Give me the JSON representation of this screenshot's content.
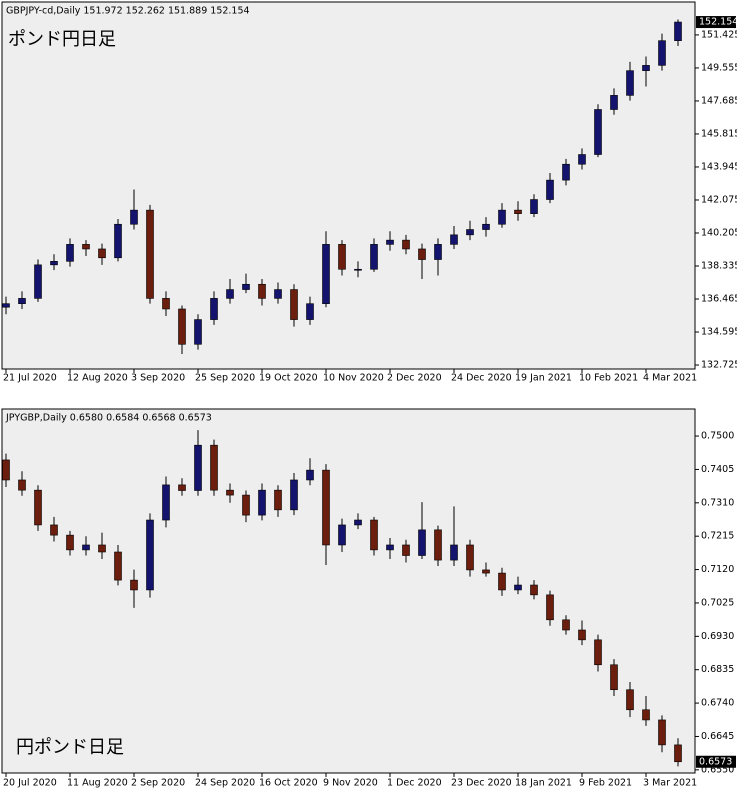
{
  "chart_data": [
    {
      "type": "candlestick",
      "title": "GBPJPY-cd,Daily  151.972 152.262 151.889 152.154",
      "annotation": "ポンド円日足",
      "up_color": "#14146e",
      "down_color": "#6b1e0e",
      "wick_color": "#000000",
      "categories": [
        "21 Jul 2020",
        null,
        null,
        null,
        "12 Aug 2020",
        null,
        null,
        null,
        "3 Sep 2020",
        null,
        null,
        null,
        "25 Sep 2020",
        null,
        null,
        null,
        "19 Oct 2020",
        null,
        null,
        null,
        "10 Nov 2020",
        null,
        null,
        null,
        "2 Dec 2020",
        null,
        null,
        null,
        "24 Dec 2020",
        null,
        null,
        null,
        "19 Jan 2021",
        null,
        null,
        null,
        "10 Feb 2021",
        null,
        null,
        null,
        "4 Mar 2021",
        null,
        null
      ],
      "open": [
        136.0,
        136.2,
        136.5,
        138.4,
        138.6,
        139.56,
        139.3,
        138.8,
        140.7,
        141.5,
        136.5,
        135.9,
        133.9,
        135.3,
        136.5,
        137.0,
        137.3,
        136.5,
        137.0,
        135.3,
        136.2,
        139.56,
        138.15,
        138.15,
        139.56,
        139.8,
        139.3,
        138.7,
        139.56,
        140.1,
        140.4,
        140.7,
        141.5,
        141.3,
        142.1,
        143.2,
        144.1,
        144.65,
        147.2,
        148.0,
        149.4,
        149.7,
        151.1
      ],
      "high": [
        136.6,
        136.9,
        138.7,
        139.0,
        139.9,
        139.8,
        139.6,
        141.0,
        142.67,
        141.8,
        136.9,
        136.1,
        135.6,
        136.9,
        137.6,
        137.9,
        137.6,
        137.4,
        137.3,
        136.6,
        140.3,
        139.8,
        138.6,
        139.9,
        140.3,
        140.1,
        139.6,
        139.9,
        140.6,
        140.9,
        141.1,
        141.9,
        142.0,
        142.4,
        143.6,
        144.4,
        145.0,
        147.5,
        148.4,
        149.9,
        150.2,
        151.5,
        152.3
      ],
      "low": [
        135.6,
        135.9,
        136.3,
        138.1,
        138.3,
        138.9,
        138.4,
        138.6,
        140.4,
        136.2,
        135.5,
        133.35,
        133.6,
        135.0,
        136.2,
        136.8,
        136.1,
        136.2,
        134.9,
        135.0,
        136.0,
        137.8,
        137.7,
        138.0,
        139.2,
        139.0,
        137.6,
        137.8,
        139.3,
        139.8,
        140.0,
        140.5,
        140.9,
        141.1,
        141.9,
        142.9,
        143.8,
        144.5,
        146.9,
        147.7,
        148.5,
        149.4,
        150.8
      ],
      "close": [
        136.2,
        136.5,
        138.4,
        138.6,
        139.56,
        139.3,
        138.8,
        140.7,
        141.5,
        136.5,
        135.9,
        133.9,
        135.3,
        136.5,
        137.0,
        137.3,
        136.5,
        137.0,
        135.3,
        136.2,
        139.56,
        138.15,
        138.15,
        139.56,
        139.8,
        139.3,
        138.7,
        139.56,
        140.1,
        140.4,
        140.7,
        141.5,
        141.3,
        142.1,
        143.2,
        144.1,
        144.65,
        147.2,
        148.0,
        149.4,
        149.7,
        151.1,
        152.154
      ],
      "ylim": [
        132.5,
        153.29
      ],
      "yticks": [
        132.725,
        134.595,
        136.465,
        138.335,
        140.205,
        142.075,
        143.945,
        145.815,
        147.685,
        149.555,
        151.425
      ],
      "last_price": 152.154
    },
    {
      "type": "candlestick",
      "title": "JPYGBP,Daily  0.6580 0.6584 0.6568 0.6573",
      "annotation": "円ポンド日足",
      "up_color": "#14146e",
      "down_color": "#6b1e0e",
      "wick_color": "#000000",
      "categories": [
        "20 Jul 2020",
        null,
        null,
        null,
        "11 Aug 2020",
        null,
        null,
        null,
        "2 Sep 2020",
        null,
        null,
        null,
        "24 Sep 2020",
        null,
        null,
        null,
        "16 Oct 2020",
        null,
        null,
        null,
        "9 Nov 2020",
        null,
        null,
        null,
        "1 Dec 2020",
        null,
        null,
        null,
        "23 Dec 2020",
        null,
        null,
        null,
        "18 Jan 2021",
        null,
        null,
        null,
        "9 Feb 2021",
        null,
        null,
        null,
        "3 Mar 2021",
        null,
        null
      ],
      "open": [
        0.7432,
        0.7375,
        0.7346,
        0.7247,
        0.7218,
        0.7176,
        0.719,
        0.717,
        0.709,
        0.7062,
        0.7261,
        0.7361,
        0.7345,
        0.7474,
        0.7346,
        0.7332,
        0.7275,
        0.7346,
        0.729,
        0.7375,
        0.7403,
        0.719,
        0.7247,
        0.7261,
        0.7176,
        0.719,
        0.716,
        0.7233,
        0.7147,
        0.719,
        0.7119,
        0.711,
        0.7062,
        0.7076,
        0.7048,
        0.6977,
        0.6948,
        0.692,
        0.6849,
        0.6778,
        0.6721,
        0.6692,
        0.6621
      ],
      "high": [
        0.745,
        0.74,
        0.736,
        0.727,
        0.723,
        0.7215,
        0.7225,
        0.719,
        0.712,
        0.728,
        0.7385,
        0.738,
        0.7517,
        0.749,
        0.7365,
        0.7345,
        0.7365,
        0.736,
        0.7395,
        0.7437,
        0.742,
        0.7265,
        0.728,
        0.727,
        0.721,
        0.7205,
        0.7312,
        0.7245,
        0.73,
        0.7205,
        0.714,
        0.7125,
        0.71,
        0.709,
        0.706,
        0.699,
        0.6975,
        0.6935,
        0.6865,
        0.68,
        0.676,
        0.6705,
        0.664
      ],
      "low": [
        0.7355,
        0.733,
        0.723,
        0.72,
        0.716,
        0.716,
        0.715,
        0.7075,
        0.7011,
        0.704,
        0.724,
        0.733,
        0.733,
        0.733,
        0.731,
        0.7255,
        0.726,
        0.727,
        0.7275,
        0.736,
        0.7133,
        0.717,
        0.7235,
        0.716,
        0.715,
        0.714,
        0.715,
        0.713,
        0.713,
        0.71,
        0.71,
        0.7045,
        0.705,
        0.7035,
        0.696,
        0.6935,
        0.6905,
        0.683,
        0.676,
        0.67,
        0.6675,
        0.66,
        0.656
      ],
      "close": [
        0.7375,
        0.7346,
        0.7247,
        0.7218,
        0.7176,
        0.719,
        0.717,
        0.709,
        0.7062,
        0.7261,
        0.7361,
        0.7345,
        0.7474,
        0.7346,
        0.7332,
        0.7275,
        0.7346,
        0.729,
        0.7375,
        0.7403,
        0.719,
        0.7247,
        0.7261,
        0.7176,
        0.719,
        0.716,
        0.7233,
        0.7147,
        0.719,
        0.7119,
        0.711,
        0.7062,
        0.7076,
        0.7048,
        0.6977,
        0.6948,
        0.692,
        0.6849,
        0.6778,
        0.6721,
        0.6692,
        0.6621,
        0.6573
      ],
      "ylim": [
        0.6541,
        0.7577
      ],
      "yticks": [
        {
          "value": 0.75,
          "label": "0.7500"
        },
        {
          "value": 0.7405,
          "label": "0.7405"
        },
        {
          "value": 0.731,
          "label": "0.7310"
        },
        {
          "value": 0.7215,
          "label": "0.7215"
        },
        {
          "value": 0.712,
          "label": "0.7120"
        },
        {
          "value": 0.7025,
          "label": "0.7025"
        },
        {
          "value": 0.693,
          "label": "0.6930"
        },
        {
          "value": 0.6835,
          "label": "0.6835"
        },
        {
          "value": 0.674,
          "label": "0.6740"
        },
        {
          "value": 0.6645,
          "label": "0.6645"
        },
        {
          "value": 0.655,
          "label": "0.6550"
        }
      ],
      "last_price": {
        "value": 0.6573,
        "label": "0.6573"
      }
    }
  ]
}
